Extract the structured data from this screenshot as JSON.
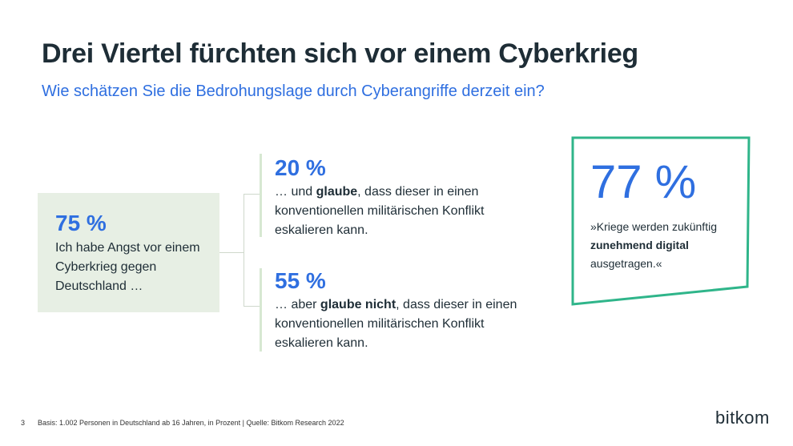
{
  "title": "Drei Viertel fürchten sich vor einem Cyberkrieg",
  "subtitle": "Wie schätzen Sie die Bedrohungslage durch Cyberangriffe derzeit ein?",
  "left": {
    "percent": "75 %",
    "text": "Ich habe Angst vor einem Cyberkrieg gegen Deutschland …"
  },
  "stat_top": {
    "percent": "20 %",
    "pre": "… und ",
    "bold": "glaube",
    "post": ", dass dieser in einen konventionellen militärischen Konflikt eskalieren kann."
  },
  "stat_bottom": {
    "percent": "55 %",
    "pre": "… aber ",
    "bold": "glaube nicht",
    "post": ", dass dieser in einen konventionellen militärischen Konflikt eskalieren kann."
  },
  "quote": {
    "percent": "77 %",
    "pre": "»Kriege werden zukünftig ",
    "bold": "zunehmend digital",
    "post": " ausgetragen.«"
  },
  "footer": {
    "page": "3",
    "source": "Basis: 1.002 Personen in Deutschland ab 16 Jahren, in Prozent | Quelle: Bitkom Research 2022"
  },
  "logo": "bitkom",
  "colors": {
    "accent_blue": "#2f6fe0",
    "frame_green": "#2fb58a",
    "box_green": "#e7efe4",
    "text_dark": "#1e2d36"
  }
}
